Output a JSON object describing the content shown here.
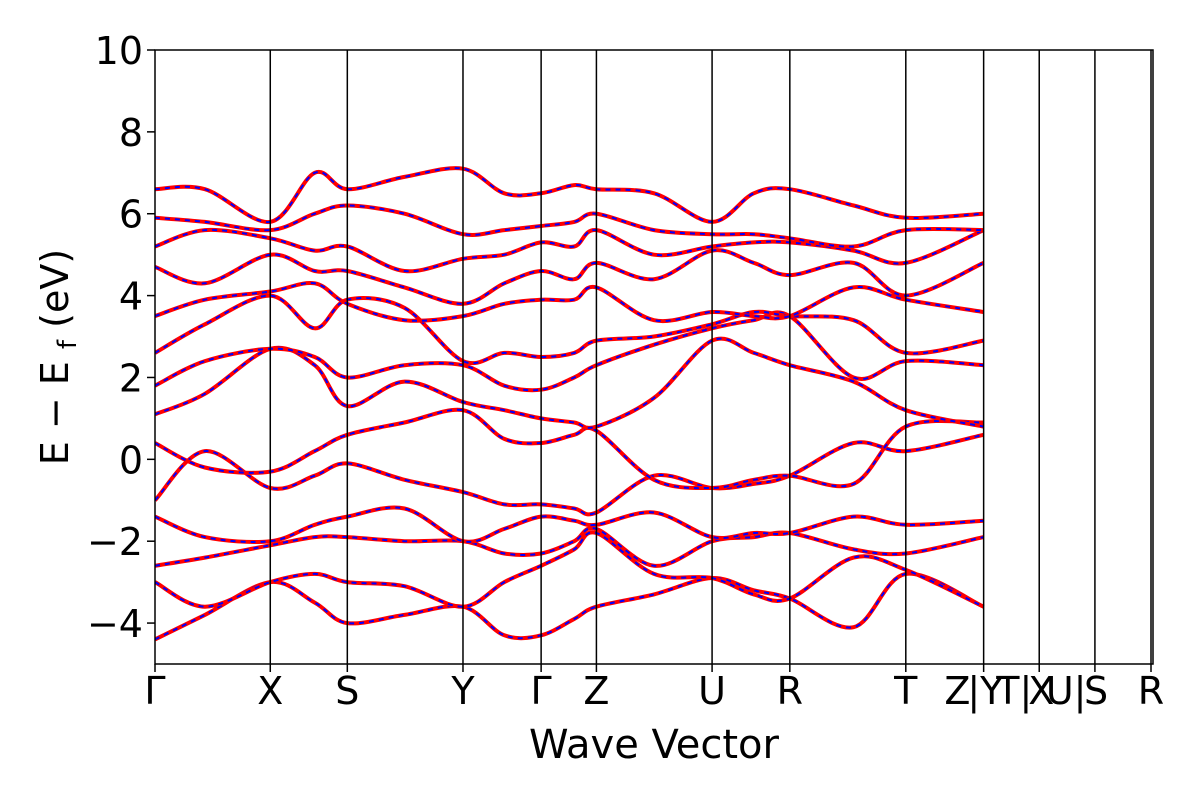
{
  "chart_data": {
    "type": "line",
    "xlabel": "Wave Vector",
    "ylabel": {
      "main": "E − E",
      "subscript": "f",
      "unit": " (eV)"
    },
    "ylim": [
      -5,
      10
    ],
    "yticks": [
      -4,
      -2,
      0,
      2,
      4,
      6,
      8,
      10
    ],
    "ytick_labels": [
      "−4",
      "−2",
      "0",
      "2",
      "4",
      "6",
      "8",
      "10"
    ],
    "grid": false,
    "legend": "none",
    "colors": {
      "primary": "#ff0000",
      "secondary": "#0000ff",
      "axis": "#000000"
    },
    "path_range": [
      0,
      1
    ],
    "high_symmetry_points": [
      {
        "label": "Γ",
        "x": 0.0
      },
      {
        "label": "X",
        "x": 0.1155
      },
      {
        "label": "S",
        "x": 0.1927
      },
      {
        "label": "Y",
        "x": 0.3086
      },
      {
        "label": "Γ",
        "x": 0.3869
      },
      {
        "label": "Z",
        "x": 0.4423
      },
      {
        "label": "U",
        "x": 0.5582
      },
      {
        "label": "R",
        "x": 0.6361
      },
      {
        "label": "T",
        "x": 0.7523
      },
      {
        "label": "Z|Y",
        "x": 0.8303
      },
      {
        "label": "T|U",
        "x": 0.886
      },
      {
        "label": "X|S",
        "x": 0.9418
      },
      {
        "label": "R",
        "x": 0.998
      }
    ],
    "tick_label_text": [
      "Γ",
      "X",
      "S",
      "Y",
      "Γ",
      "Z",
      "U",
      "R",
      "T",
      "Z",
      "|Y",
      "T|",
      "X",
      "U|",
      "S",
      "R"
    ],
    "series_style": "each band drawn as a red solid line overlaid with a blue dashed line",
    "bands": [
      {
        "x": [
          0.0,
          0.05,
          0.1155,
          0.16,
          0.1927,
          0.25,
          0.3086,
          0.35,
          0.3869,
          0.42,
          0.4423,
          0.5,
          0.5582,
          0.6,
          0.6361,
          0.7,
          0.7523,
          0.8303
        ],
        "y": [
          -4.4,
          -3.8,
          -3.0,
          -3.5,
          -4.0,
          -3.8,
          -3.6,
          -4.3,
          -4.3,
          -3.9,
          -3.6,
          -3.3,
          -2.9,
          -3.2,
          -3.4,
          -4.1,
          -2.8,
          -3.6
        ]
      },
      {
        "x": [
          0.0,
          0.05,
          0.1155,
          0.16,
          0.1927,
          0.25,
          0.3086,
          0.35,
          0.3869,
          0.42,
          0.4423,
          0.5,
          0.5582,
          0.6,
          0.6361,
          0.7,
          0.7523,
          0.8303
        ],
        "y": [
          -3.0,
          -3.6,
          -3.0,
          -2.8,
          -3.0,
          -3.1,
          -3.6,
          -3.0,
          -2.6,
          -2.2,
          -1.8,
          -2.8,
          -2.9,
          -3.3,
          -3.4,
          -2.4,
          -2.7,
          -3.6
        ]
      },
      {
        "x": [
          0.0,
          0.05,
          0.1155,
          0.16,
          0.1927,
          0.25,
          0.3086,
          0.35,
          0.3869,
          0.42,
          0.4423,
          0.5,
          0.5582,
          0.6,
          0.6361,
          0.7,
          0.7523,
          0.8303
        ],
        "y": [
          -2.6,
          -2.4,
          -2.1,
          -1.9,
          -1.9,
          -2.0,
          -2.0,
          -2.3,
          -2.3,
          -2.0,
          -1.7,
          -2.6,
          -2.0,
          -1.9,
          -1.8,
          -2.2,
          -2.3,
          -1.9
        ]
      },
      {
        "x": [
          0.0,
          0.05,
          0.1155,
          0.16,
          0.1927,
          0.25,
          0.3086,
          0.35,
          0.3869,
          0.42,
          0.4423,
          0.5,
          0.5582,
          0.6,
          0.6361,
          0.7,
          0.7523,
          0.8303
        ],
        "y": [
          -1.4,
          -1.9,
          -2.0,
          -1.6,
          -1.4,
          -1.2,
          -2.0,
          -1.7,
          -1.4,
          -1.5,
          -1.6,
          -1.3,
          -1.9,
          -1.8,
          -1.8,
          -1.4,
          -1.6,
          -1.5
        ]
      },
      {
        "x": [
          0.0,
          0.05,
          0.1155,
          0.16,
          0.1927,
          0.25,
          0.3086,
          0.35,
          0.3869,
          0.42,
          0.4423,
          0.5,
          0.5582,
          0.6,
          0.6361,
          0.7,
          0.7523,
          0.8303
        ],
        "y": [
          -1.0,
          0.2,
          -0.7,
          -0.4,
          -0.1,
          -0.5,
          -0.8,
          -1.1,
          -1.1,
          -1.2,
          -1.3,
          -0.4,
          -0.7,
          -0.6,
          -0.4,
          0.4,
          0.2,
          0.6
        ]
      },
      {
        "x": [
          0.0,
          0.05,
          0.1155,
          0.16,
          0.1927,
          0.25,
          0.3086,
          0.35,
          0.3869,
          0.42,
          0.4423,
          0.5,
          0.5582,
          0.6,
          0.6361,
          0.7,
          0.7523,
          0.8303
        ],
        "y": [
          0.4,
          -0.2,
          -0.3,
          0.2,
          0.6,
          0.9,
          1.2,
          0.5,
          0.4,
          0.6,
          0.7,
          -0.5,
          -0.7,
          -0.5,
          -0.4,
          -0.6,
          0.8,
          0.9
        ]
      },
      {
        "x": [
          0.0,
          0.05,
          0.1155,
          0.16,
          0.1927,
          0.25,
          0.3086,
          0.35,
          0.3869,
          0.42,
          0.4423,
          0.5,
          0.5582,
          0.6,
          0.6361,
          0.7,
          0.7523,
          0.8303
        ],
        "y": [
          1.1,
          1.6,
          2.7,
          2.3,
          1.3,
          1.9,
          1.4,
          1.2,
          1.0,
          0.9,
          0.8,
          1.5,
          2.9,
          2.6,
          2.3,
          1.9,
          1.2,
          0.8
        ]
      },
      {
        "x": [
          0.0,
          0.05,
          0.1155,
          0.16,
          0.1927,
          0.25,
          0.3086,
          0.35,
          0.3869,
          0.42,
          0.4423,
          0.5,
          0.5582,
          0.6,
          0.6361,
          0.7,
          0.7523,
          0.8303
        ],
        "y": [
          1.8,
          2.4,
          2.7,
          2.5,
          2.0,
          2.3,
          2.3,
          1.8,
          1.7,
          2.0,
          2.3,
          2.8,
          3.2,
          3.4,
          3.5,
          2.0,
          2.4,
          2.3
        ]
      },
      {
        "x": [
          0.0,
          0.05,
          0.1155,
          0.16,
          0.1927,
          0.25,
          0.3086,
          0.35,
          0.3869,
          0.42,
          0.4423,
          0.5,
          0.5582,
          0.6,
          0.6361,
          0.7,
          0.7523,
          0.8303
        ],
        "y": [
          2.6,
          3.3,
          4.0,
          3.2,
          3.9,
          3.7,
          2.4,
          2.6,
          2.5,
          2.6,
          2.9,
          3.0,
          3.3,
          3.6,
          3.5,
          3.4,
          2.6,
          2.9
        ]
      },
      {
        "x": [
          0.0,
          0.05,
          0.1155,
          0.16,
          0.1927,
          0.25,
          0.3086,
          0.35,
          0.3869,
          0.42,
          0.4423,
          0.5,
          0.5582,
          0.6,
          0.6361,
          0.7,
          0.7523,
          0.8303
        ],
        "y": [
          3.5,
          3.9,
          4.1,
          4.3,
          3.8,
          3.4,
          3.5,
          3.8,
          3.9,
          3.9,
          4.2,
          3.4,
          3.6,
          3.5,
          3.5,
          4.2,
          3.9,
          3.6
        ]
      },
      {
        "x": [
          0.0,
          0.05,
          0.1155,
          0.16,
          0.1927,
          0.25,
          0.3086,
          0.35,
          0.3869,
          0.42,
          0.4423,
          0.5,
          0.5582,
          0.6,
          0.6361,
          0.7,
          0.7523,
          0.8303
        ],
        "y": [
          4.7,
          4.3,
          5.0,
          4.6,
          4.6,
          4.2,
          3.8,
          4.3,
          4.6,
          4.4,
          4.8,
          4.4,
          5.1,
          4.8,
          4.5,
          4.8,
          4.0,
          4.8
        ]
      },
      {
        "x": [
          0.0,
          0.05,
          0.1155,
          0.16,
          0.1927,
          0.25,
          0.3086,
          0.35,
          0.3869,
          0.42,
          0.4423,
          0.5,
          0.5582,
          0.6,
          0.6361,
          0.7,
          0.7523,
          0.8303
        ],
        "y": [
          5.2,
          5.6,
          5.4,
          5.1,
          5.2,
          4.6,
          4.9,
          5.0,
          5.3,
          5.2,
          5.6,
          5.0,
          5.2,
          5.3,
          5.3,
          5.1,
          4.8,
          5.6
        ]
      },
      {
        "x": [
          0.0,
          0.05,
          0.1155,
          0.16,
          0.1927,
          0.25,
          0.3086,
          0.35,
          0.3869,
          0.42,
          0.4423,
          0.5,
          0.5582,
          0.6,
          0.6361,
          0.7,
          0.7523,
          0.8303
        ],
        "y": [
          5.9,
          5.8,
          5.6,
          6.0,
          6.2,
          6.0,
          5.5,
          5.6,
          5.7,
          5.8,
          6.0,
          5.6,
          5.5,
          5.5,
          5.4,
          5.2,
          5.6,
          5.6
        ]
      },
      {
        "x": [
          0.0,
          0.05,
          0.1155,
          0.16,
          0.1927,
          0.25,
          0.3086,
          0.35,
          0.3869,
          0.42,
          0.4423,
          0.5,
          0.5582,
          0.6,
          0.6361,
          0.7,
          0.7523,
          0.8303
        ],
        "y": [
          6.6,
          6.6,
          5.8,
          7.0,
          6.6,
          6.9,
          7.1,
          6.5,
          6.5,
          6.7,
          6.6,
          6.5,
          5.8,
          6.5,
          6.6,
          6.2,
          5.9,
          6.0
        ]
      }
    ]
  }
}
